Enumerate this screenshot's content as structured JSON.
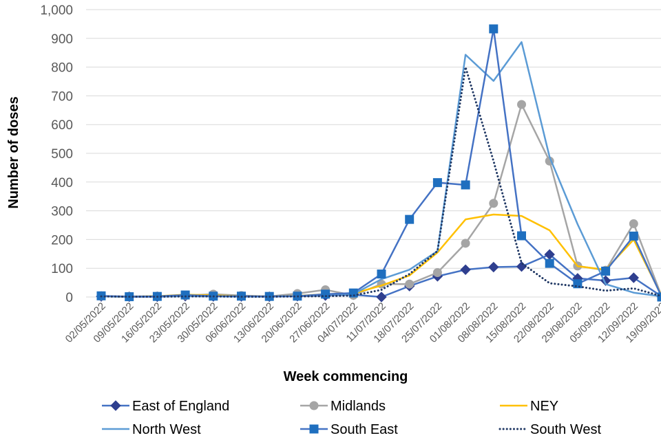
{
  "chart_data": {
    "type": "line",
    "title": "",
    "xlabel": "Week commencing",
    "ylabel": "Number of doses",
    "ylim": [
      0,
      1000
    ],
    "yticks": [
      "0",
      "100",
      "200",
      "300",
      "400",
      "500",
      "600",
      "700",
      "800",
      "900",
      "1,000"
    ],
    "grid": true,
    "legend_position": "bottom",
    "categories": [
      "02/05/2022",
      "09/05/2022",
      "16/05/2022",
      "23/05/2022",
      "30/05/2022",
      "06/06/2022",
      "13/06/2022",
      "20/06/2022",
      "27/06/2022",
      "04/07/2022",
      "11/07/2022",
      "18/07/2022",
      "25/07/2022",
      "01/08/2022",
      "08/08/2022",
      "15/08/2022",
      "22/08/2022",
      "29/08/2022",
      "05/09/2022",
      "12/09/2022",
      "19/09/2022"
    ],
    "series": [
      {
        "name": "East of England",
        "color": "#2F3F8F",
        "line_color": "#4472C4",
        "marker": "diamond",
        "dash": "solid",
        "values": [
          2,
          1,
          1,
          3,
          2,
          2,
          1,
          3,
          5,
          8,
          0,
          38,
          72,
          95,
          104,
          106,
          148,
          65,
          57,
          67,
          2
        ]
      },
      {
        "name": "Midlands",
        "color": "#A5A5A5",
        "marker": "circle",
        "dash": "solid",
        "values": [
          3,
          2,
          3,
          5,
          10,
          5,
          2,
          12,
          25,
          6,
          45,
          45,
          85,
          187,
          326,
          670,
          473,
          108,
          93,
          255,
          2
        ]
      },
      {
        "name": "NEY",
        "color": "#FFC000",
        "marker": "none",
        "dash": "solid",
        "values": [
          2,
          1,
          3,
          8,
          6,
          3,
          2,
          4,
          10,
          12,
          40,
          75,
          155,
          270,
          287,
          282,
          232,
          107,
          95,
          200,
          3
        ]
      },
      {
        "name": "North West",
        "color": "#5B9BD5",
        "marker": "none",
        "dash": "solid",
        "values": [
          2,
          1,
          2,
          3,
          2,
          1,
          2,
          3,
          8,
          10,
          62,
          95,
          160,
          843,
          752,
          887,
          487,
          253,
          45,
          15,
          2
        ]
      },
      {
        "name": "South East",
        "color": "#1F6FBF",
        "line_color": "#4472C4",
        "marker": "square",
        "dash": "solid",
        "values": [
          4,
          1,
          2,
          7,
          3,
          3,
          2,
          3,
          10,
          14,
          80,
          270,
          398,
          390,
          933,
          213,
          117,
          46,
          90,
          212,
          0
        ]
      },
      {
        "name": "South West",
        "color": "#203864",
        "marker": "none",
        "dash": "dotted",
        "values": [
          2,
          1,
          1,
          2,
          2,
          1,
          1,
          2,
          3,
          5,
          25,
          80,
          160,
          800,
          473,
          118,
          48,
          37,
          22,
          30,
          3
        ]
      }
    ]
  }
}
